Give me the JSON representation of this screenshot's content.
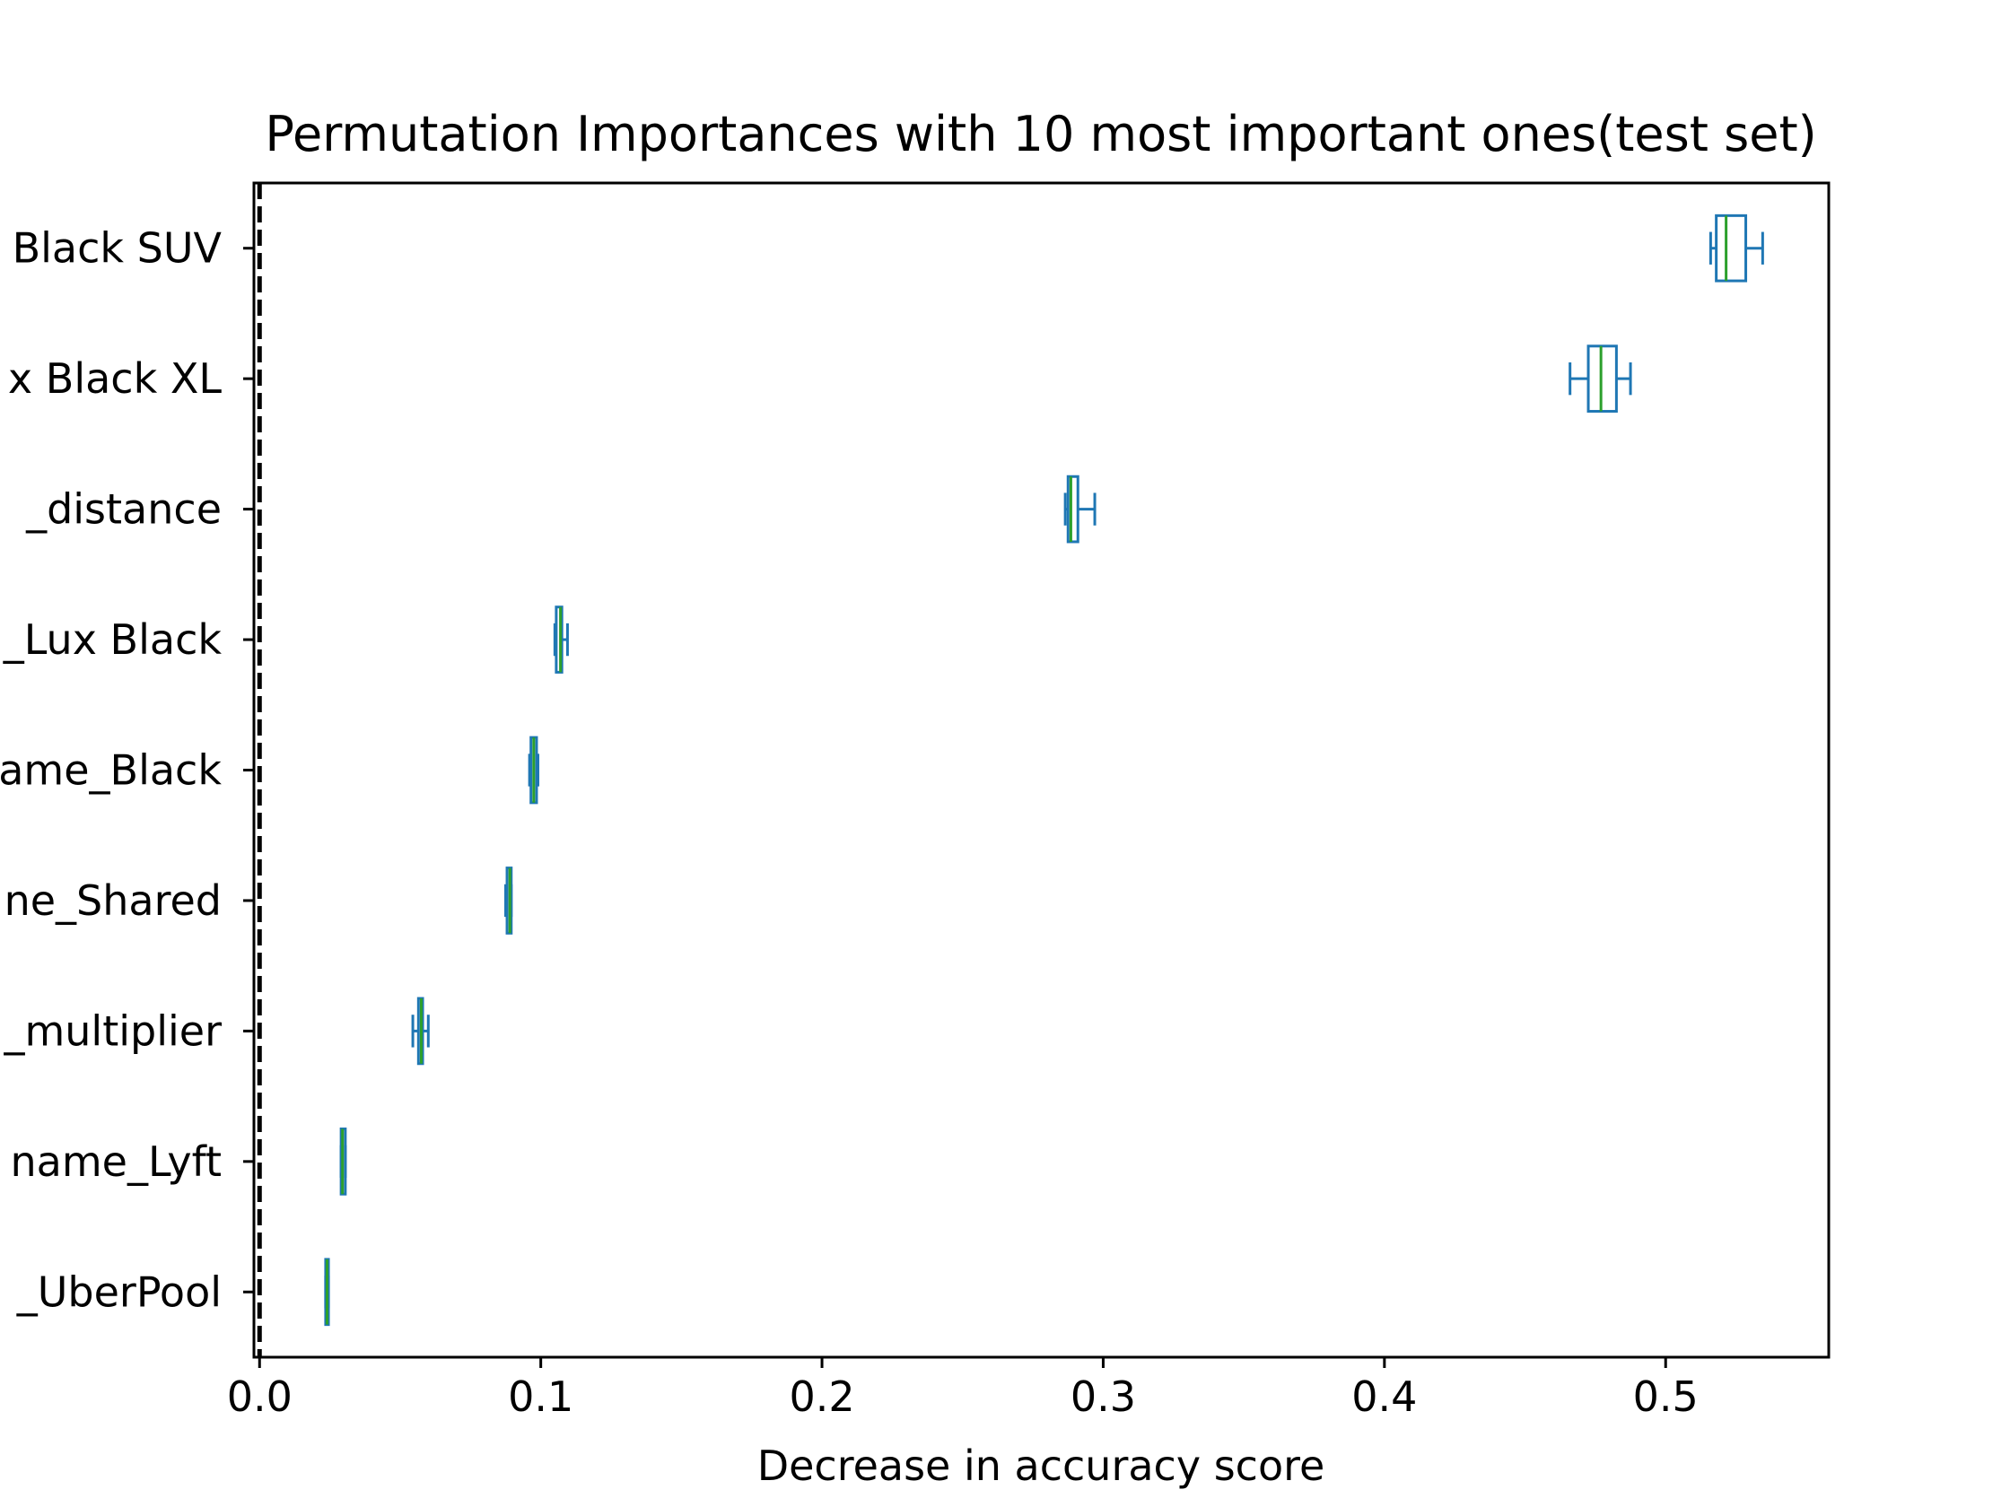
{
  "chart_data": {
    "type": "box",
    "orientation": "horizontal",
    "title": "Permutation Importances with 10 most important ones(test set)",
    "xlabel": "Decrease in accuracy score",
    "ylabel": "",
    "xlim": [
      -0.002,
      0.558
    ],
    "xticks": [
      "0.0",
      "0.1",
      "0.2",
      "0.3",
      "0.4",
      "0.5"
    ],
    "reference_line": {
      "x": 0.0,
      "style": "dashed",
      "color": "#000000"
    },
    "grid": false,
    "categories": [
      "Black SUV",
      "x Black XL",
      "_distance",
      "_Lux Black",
      "ame_Black",
      "ne_Shared",
      "_multiplier",
      "name_Lyft",
      "_UberPool"
    ],
    "boxes": [
      {
        "whisker_low": 0.516,
        "q1": 0.518,
        "median": 0.5215,
        "q3": 0.5285,
        "whisker_high": 0.5345
      },
      {
        "whisker_low": 0.466,
        "q1": 0.4725,
        "median": 0.477,
        "q3": 0.4825,
        "whisker_high": 0.4875
      },
      {
        "whisker_low": 0.2865,
        "q1": 0.2875,
        "median": 0.2885,
        "q3": 0.291,
        "whisker_high": 0.297
      },
      {
        "whisker_low": 0.105,
        "q1": 0.1055,
        "median": 0.107,
        "q3": 0.1075,
        "whisker_high": 0.1095
      },
      {
        "whisker_low": 0.096,
        "q1": 0.0965,
        "median": 0.0975,
        "q3": 0.0985,
        "whisker_high": 0.099
      },
      {
        "whisker_low": 0.0875,
        "q1": 0.088,
        "median": 0.089,
        "q3": 0.0895,
        "whisker_high": 0.0895
      },
      {
        "whisker_low": 0.0545,
        "q1": 0.0565,
        "median": 0.0575,
        "q3": 0.058,
        "whisker_high": 0.06
      },
      {
        "whisker_low": 0.029,
        "q1": 0.029,
        "median": 0.0295,
        "q3": 0.0305,
        "whisker_high": 0.0305
      },
      {
        "whisker_low": 0.0235,
        "q1": 0.0235,
        "median": 0.024,
        "q3": 0.0245,
        "whisker_high": 0.0245
      }
    ],
    "colors": {
      "box": "#1f77b4",
      "median": "#2ca02c",
      "axes": "#000000"
    }
  }
}
